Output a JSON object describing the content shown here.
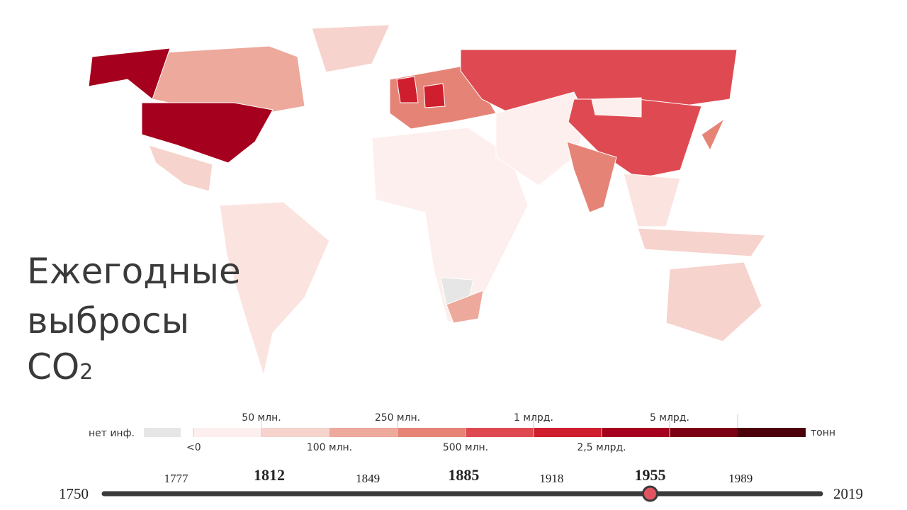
{
  "title": [
    "Ежегодные",
    "выбросы"
  ],
  "formula": {
    "base": "CO",
    "sub": "2"
  },
  "legend": {
    "no_data": "нет инф.",
    "no_data_color": "#e6e6e6",
    "labels": [
      "<0",
      "50 млн.",
      "100 млн.",
      "250 млн.",
      "500 млн.",
      "1 млрд.",
      "2,5 млрд.",
      "5 млрд."
    ],
    "colors": [
      "#fdefed",
      "#f6d3cc",
      "#eda99c",
      "#e58476",
      "#df4a52",
      "#cf1f2e",
      "#a5001d",
      "#7b0013",
      "#4b000b"
    ],
    "unit": "тонн"
  },
  "timeline": {
    "range": [
      1750,
      2019
    ],
    "major_ticks": [
      1812,
      1885,
      1955
    ],
    "minor_ticks": [
      1777,
      1849,
      1918,
      1989
    ],
    "current": 1955
  }
}
